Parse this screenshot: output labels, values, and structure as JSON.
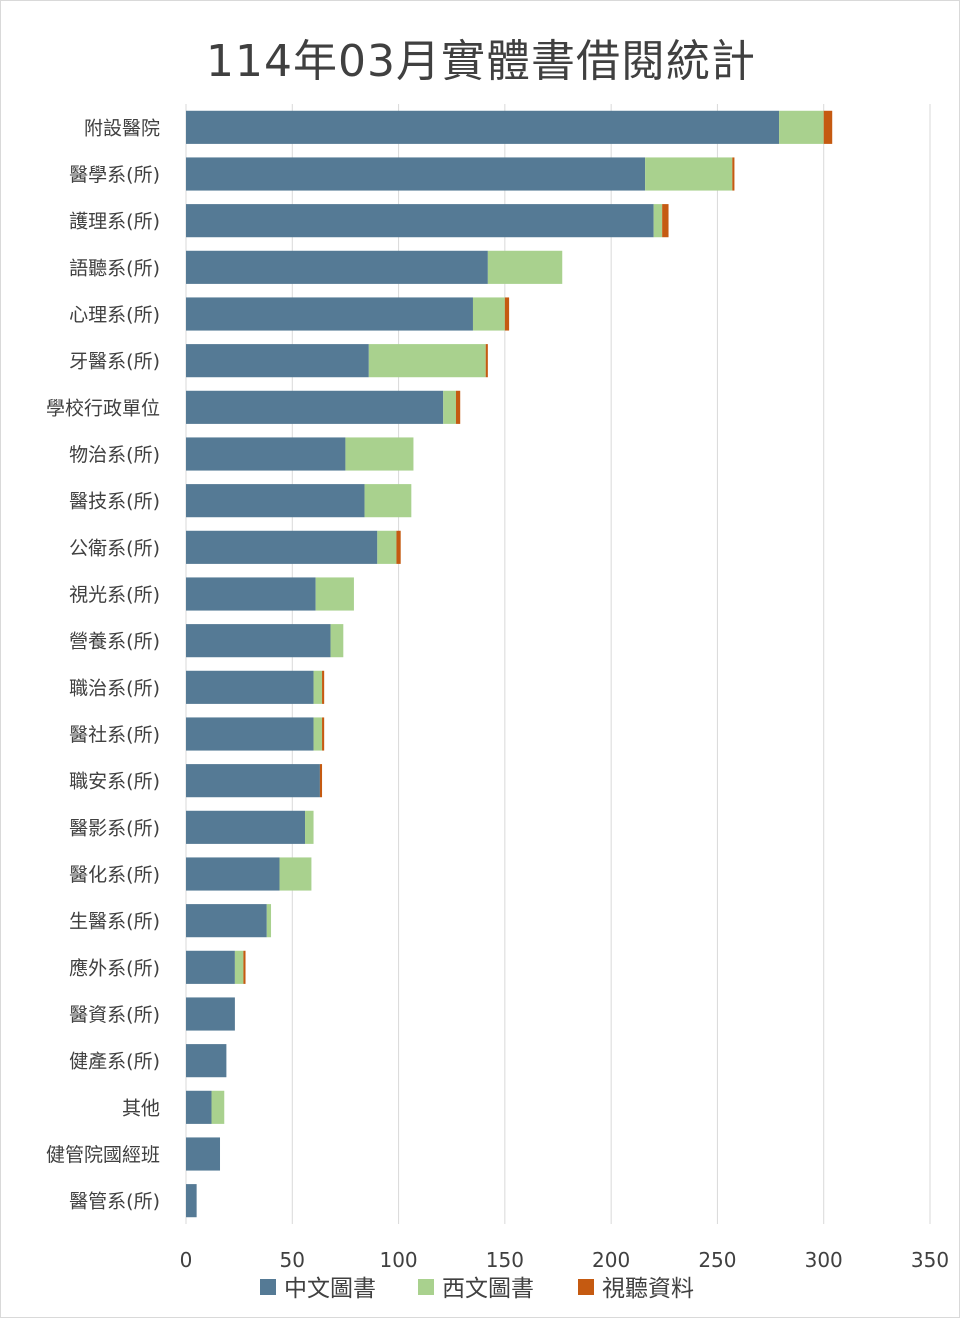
{
  "chart_data": {
    "type": "bar",
    "orientation": "horizontal",
    "stacked": true,
    "title": "114年03月實體書借閱統計",
    "categories": [
      "附設醫院",
      "醫學系(所)",
      "護理系(所)",
      "語聽系(所)",
      "心理系(所)",
      "牙醫系(所)",
      "學校行政單位",
      "物治系(所)",
      "醫技系(所)",
      "公衛系(所)",
      "視光系(所)",
      "營養系(所)",
      "職治系(所)",
      "醫社系(所)",
      "職安系(所)",
      "醫影系(所)",
      "醫化系(所)",
      "生醫系(所)",
      "應外系(所)",
      "醫資系(所)",
      "健產系(所)",
      "其他",
      "健管院國經班",
      "醫管系(所)"
    ],
    "series": [
      {
        "name": "中文圖書",
        "color": "#557a95",
        "values": [
          279,
          216,
          220,
          142,
          135,
          86,
          121,
          75,
          84,
          90,
          61,
          68,
          60,
          60,
          63,
          56,
          44,
          38,
          23,
          23,
          19,
          12,
          16,
          5
        ]
      },
      {
        "name": "西文圖書",
        "color": "#a9d18e",
        "values": [
          21,
          41,
          4,
          35,
          15,
          55,
          6,
          32,
          22,
          9,
          18,
          6,
          4,
          4,
          0,
          4,
          15,
          2,
          4,
          0,
          0,
          6,
          0,
          0
        ]
      },
      {
        "name": "視聽資料",
        "color": "#c55a11",
        "values": [
          4,
          1,
          3,
          0,
          2,
          1,
          2,
          0,
          0,
          2,
          0,
          0,
          1,
          1,
          1,
          0,
          0,
          0,
          1,
          0,
          0,
          0,
          0,
          0
        ]
      }
    ],
    "xlim": [
      0,
      350
    ],
    "xticks": [
      "0",
      "50",
      "100",
      "150",
      "200",
      "250",
      "300",
      "350"
    ],
    "grid": true,
    "legend_position": "bottom"
  }
}
